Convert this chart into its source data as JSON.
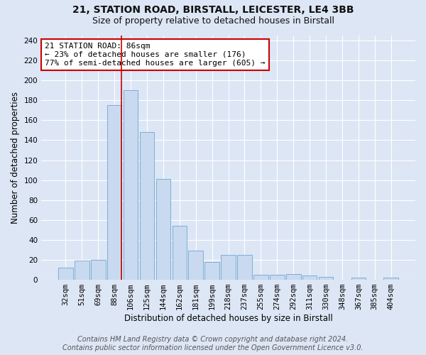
{
  "title": "21, STATION ROAD, BIRSTALL, LEICESTER, LE4 3BB",
  "subtitle": "Size of property relative to detached houses in Birstall",
  "xlabel": "Distribution of detached houses by size in Birstall",
  "ylabel": "Number of detached properties",
  "categories": [
    "32sqm",
    "51sqm",
    "69sqm",
    "88sqm",
    "106sqm",
    "125sqm",
    "144sqm",
    "162sqm",
    "181sqm",
    "199sqm",
    "218sqm",
    "237sqm",
    "255sqm",
    "274sqm",
    "292sqm",
    "311sqm",
    "330sqm",
    "348sqm",
    "367sqm",
    "385sqm",
    "404sqm"
  ],
  "values": [
    12,
    19,
    20,
    175,
    190,
    148,
    101,
    54,
    29,
    18,
    25,
    25,
    5,
    5,
    6,
    4,
    3,
    0,
    2,
    0,
    2
  ],
  "bar_color": "#c9d9f0",
  "bar_edge_color": "#7bafd4",
  "background_color": "#dde6f5",
  "grid_color": "#ffffff",
  "annotation_text": "21 STATION ROAD: 86sqm\n← 23% of detached houses are smaller (176)\n77% of semi-detached houses are larger (605) →",
  "annotation_box_color": "#ffffff",
  "annotation_box_edge": "#cc0000",
  "footer_line1": "Contains HM Land Registry data © Crown copyright and database right 2024.",
  "footer_line2": "Contains public sector information licensed under the Open Government Licence v3.0.",
  "ylim": [
    0,
    245
  ],
  "yticks": [
    0,
    20,
    40,
    60,
    80,
    100,
    120,
    140,
    160,
    180,
    200,
    220,
    240
  ],
  "red_line_color": "#cc0000",
  "red_line_bar_index": 3,
  "title_fontsize": 10,
  "subtitle_fontsize": 9,
  "axis_label_fontsize": 8.5,
  "tick_fontsize": 7.5,
  "annotation_fontsize": 8,
  "footer_fontsize": 7
}
